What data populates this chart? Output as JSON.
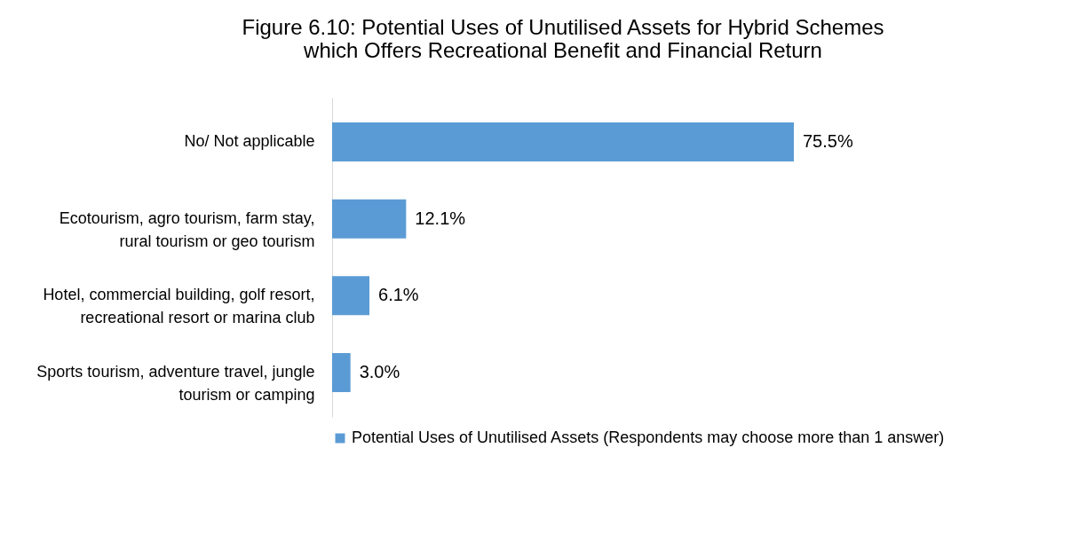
{
  "chart_data": {
    "type": "bar",
    "orientation": "horizontal",
    "title": "Figure 6.10: Potential Uses of Unutilised Assets for Hybrid Schemes which Offers Recreational Benefit and Financial Return",
    "categories": [
      "No/ Not applicable",
      "Ecotourism, agro tourism, farm stay, rural tourism or geo tourism",
      "Hotel, commercial building, golf resort, recreational resort or marina club",
      "Sports tourism, adventure travel, jungle tourism or camping"
    ],
    "series": [
      {
        "name": "Potential Uses of Unutilised Assets (Respondents may choose more than 1 answer)",
        "color": "#5b9bd5",
        "values": [
          75.5,
          12.1,
          6.1,
          3.0
        ],
        "value_labels": [
          "75.5%",
          "12.1%",
          "6.1%",
          "3.0%"
        ]
      }
    ],
    "legend": "bottom"
  }
}
